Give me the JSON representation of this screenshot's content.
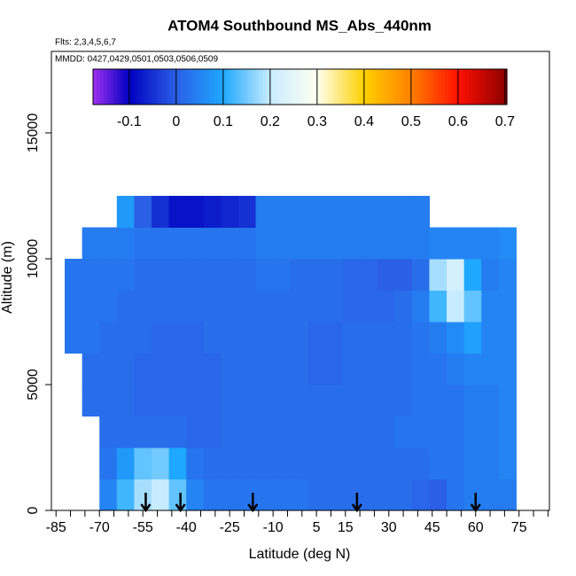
{
  "chart_data": {
    "type": "heatmap",
    "title": "ATOM4 Southbound MS_Abs_440nm",
    "flights_label": "Flts: 2,3,4,5,6,7",
    "dates_label": "MMDD: 0427,0429,0501,0503,0506,0509",
    "x_label": "Latitude (deg N)",
    "y_label": "Altitude (m)",
    "xlim": [
      -86.6,
      85.5
    ],
    "ylim": [
      0,
      18240
    ],
    "xticks": [
      -85,
      -70,
      -55,
      -40,
      -25,
      -10,
      5,
      15,
      30,
      45,
      60,
      75
    ],
    "x_minor_ticks": [
      -80,
      -75,
      -65,
      -60,
      -50,
      -45,
      -35,
      -30,
      -20,
      -15,
      -5,
      0,
      10,
      20,
      25,
      35,
      40,
      50,
      55,
      65,
      70,
      80,
      85
    ],
    "yticks": [
      0,
      5000,
      10000,
      15000
    ],
    "x_edges": [
      -82,
      -76,
      -70,
      -64,
      -58,
      -52,
      -46,
      -40,
      -34,
      -28,
      -22,
      -16,
      -10,
      -4,
      2,
      8,
      14,
      20,
      26,
      32,
      38,
      44,
      50,
      56,
      62,
      68,
      74
    ],
    "y_edges": [
      0,
      1250,
      2500,
      3750,
      5000,
      6250,
      7500,
      8750,
      10000,
      11250,
      12500
    ],
    "z": [
      [
        null,
        null,
        0.05,
        0.12,
        0.18,
        0.2,
        0.14,
        0.05,
        0.03,
        0.03,
        0.03,
        0.03,
        0.03,
        0.03,
        0.02,
        0.02,
        0.02,
        0.02,
        0.02,
        0.02,
        0.01,
        0.0,
        0.03,
        0.04,
        0.04,
        0.04
      ],
      [
        null,
        null,
        0.03,
        0.08,
        0.14,
        0.15,
        0.1,
        0.03,
        0.02,
        0.02,
        0.02,
        0.02,
        0.02,
        0.02,
        0.02,
        0.02,
        0.02,
        0.02,
        0.02,
        0.02,
        0.02,
        0.03,
        0.03,
        0.04,
        0.04,
        0.05
      ],
      [
        null,
        null,
        0.02,
        0.02,
        0.02,
        0.02,
        0.02,
        0.01,
        0.01,
        0.02,
        0.02,
        0.02,
        0.02,
        0.02,
        0.02,
        0.02,
        0.02,
        0.02,
        0.02,
        0.03,
        0.03,
        0.03,
        0.03,
        0.04,
        0.04,
        0.05
      ],
      [
        null,
        0.02,
        0.02,
        0.02,
        0.01,
        0.01,
        0.01,
        0.01,
        0.01,
        0.02,
        0.02,
        0.02,
        0.02,
        0.02,
        0.02,
        0.02,
        0.02,
        0.02,
        0.02,
        0.02,
        0.03,
        0.03,
        0.03,
        0.04,
        0.04,
        0.05
      ],
      [
        null,
        0.02,
        0.02,
        0.02,
        0.01,
        0.01,
        0.01,
        0.01,
        0.01,
        0.02,
        0.02,
        0.02,
        0.02,
        0.02,
        0.01,
        0.01,
        0.02,
        0.02,
        0.02,
        0.02,
        0.03,
        0.03,
        0.04,
        0.05,
        0.05,
        0.05
      ],
      [
        0.03,
        0.03,
        0.02,
        0.02,
        0.02,
        0.01,
        0.01,
        0.01,
        0.02,
        0.02,
        0.02,
        0.02,
        0.02,
        0.02,
        0.01,
        0.01,
        0.02,
        0.02,
        0.02,
        0.02,
        0.03,
        0.04,
        0.06,
        0.09,
        0.05,
        0.05
      ],
      [
        0.03,
        0.03,
        0.03,
        0.02,
        0.02,
        0.02,
        0.02,
        0.02,
        0.02,
        0.02,
        0.02,
        0.02,
        0.02,
        0.02,
        0.02,
        0.02,
        0.01,
        0.01,
        0.01,
        0.02,
        0.04,
        0.12,
        0.2,
        0.14,
        0.05,
        0.05
      ],
      [
        0.03,
        0.03,
        0.03,
        0.03,
        0.02,
        0.02,
        0.02,
        0.02,
        0.02,
        0.02,
        0.02,
        0.03,
        0.03,
        0.02,
        0.02,
        0.02,
        0.01,
        0.01,
        0.0,
        0.0,
        0.02,
        0.18,
        0.22,
        0.1,
        0.04,
        0.05
      ],
      [
        null,
        0.04,
        0.04,
        0.04,
        0.03,
        0.03,
        0.03,
        0.03,
        0.03,
        0.03,
        0.03,
        0.04,
        0.04,
        0.04,
        0.04,
        0.04,
        0.04,
        0.04,
        0.04,
        0.04,
        0.04,
        0.05,
        0.05,
        0.05,
        0.05,
        0.06
      ],
      [
        null,
        null,
        null,
        0.08,
        0.0,
        -0.05,
        -0.08,
        -0.08,
        -0.07,
        -0.06,
        -0.05,
        0.04,
        0.04,
        0.04,
        0.04,
        0.04,
        0.04,
        0.04,
        0.04,
        0.04,
        0.04,
        null,
        null,
        null,
        null,
        null
      ]
    ],
    "arrow_lats": [
      -54,
      -42,
      -17,
      19,
      60
    ],
    "colorbar": {
      "lim": [
        -0.177,
        0.704
      ],
      "ticks": [
        -0.1,
        0.0,
        0.1,
        0.2,
        0.3,
        0.4,
        0.5,
        0.6,
        0.7
      ],
      "stops": [
        -0.177,
        -0.1,
        0.0,
        0.1,
        0.2,
        0.3,
        0.4,
        0.5,
        0.6,
        0.704
      ],
      "colors": [
        "#a030f0",
        "#0000c0",
        "#2a5fe6",
        "#1ea8ff",
        "#c8ecff",
        "#fffff0",
        "#ffd000",
        "#ff8000",
        "#ff1000",
        "#8b0000"
      ]
    }
  }
}
